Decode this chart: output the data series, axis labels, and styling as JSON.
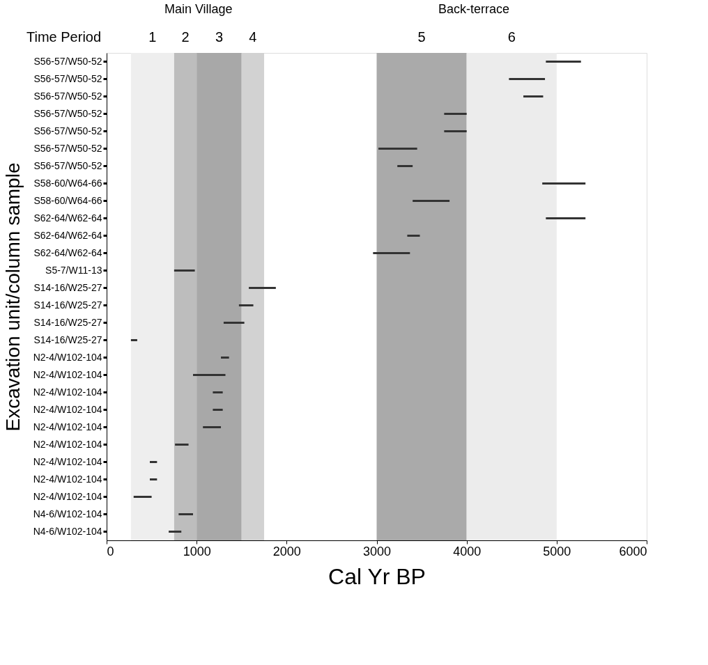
{
  "chart_data": {
    "type": "bar",
    "orientation": "horizontal",
    "xlabel": "Cal Yr BP",
    "ylabel": "Excavation unit/column sample",
    "legend_title": "Time Period",
    "categories": [
      "S56-57/W50-52",
      "S56-57/W50-52",
      "S56-57/W50-52",
      "S56-57/W50-52",
      "S56-57/W50-52",
      "S56-57/W50-52",
      "S56-57/W50-52",
      "S58-60/W64-66",
      "S58-60/W64-66",
      "S62-64/W62-64",
      "S62-64/W62-64",
      "S62-64/W62-64",
      "S5-7/W11-13",
      "S14-16/W25-27",
      "S14-16/W25-27",
      "S14-16/W25-27",
      "S14-16/W25-27",
      "N2-4/W102-104",
      "N2-4/W102-104",
      "N2-4/W102-104",
      "N2-4/W102-104",
      "N2-4/W102-104",
      "N2-4/W102-104",
      "N2-4/W102-104",
      "N2-4/W102-104",
      "N2-4/W102-104",
      "N4-6/W102-104",
      "N4-6/W102-104"
    ],
    "base": [
      4880,
      4470,
      4630,
      3750,
      3750,
      3020,
      3230,
      4840,
      3400,
      4880,
      3340,
      2960,
      750,
      1580,
      1470,
      1300,
      270,
      1270,
      960,
      1180,
      1180,
      1070,
      760,
      480,
      480,
      300,
      800,
      690
    ],
    "values": [
      390,
      400,
      220,
      250,
      250,
      430,
      170,
      480,
      410,
      440,
      140,
      410,
      230,
      300,
      160,
      230,
      70,
      90,
      360,
      110,
      110,
      200,
      150,
      80,
      80,
      200,
      160,
      140
    ],
    "color": "#333333",
    "xlim": [
      0,
      6000
    ],
    "xticks": [
      0,
      1000,
      2000,
      3000,
      4000,
      5000,
      6000
    ],
    "bands": [
      {
        "axis": "x",
        "from": 270,
        "to": 750,
        "label": "1",
        "color": "#eeeeee"
      },
      {
        "axis": "x",
        "from": 750,
        "to": 1000,
        "label": "2",
        "color": "#bdbdbd"
      },
      {
        "axis": "x",
        "from": 1000,
        "to": 1500,
        "label": "3",
        "color": "#a8a8a8"
      },
      {
        "axis": "x",
        "from": 1500,
        "to": 1750,
        "label": "4",
        "color": "#d2d2d2"
      },
      {
        "axis": "x",
        "from": 3000,
        "to": 4000,
        "label": "5",
        "color": "#aaaaaa"
      },
      {
        "axis": "x",
        "from": 4000,
        "to": 5000,
        "label": "6",
        "color": "#ececec"
      }
    ],
    "annotations": [
      "Main Village",
      "Back-terrace"
    ],
    "grid": false
  }
}
